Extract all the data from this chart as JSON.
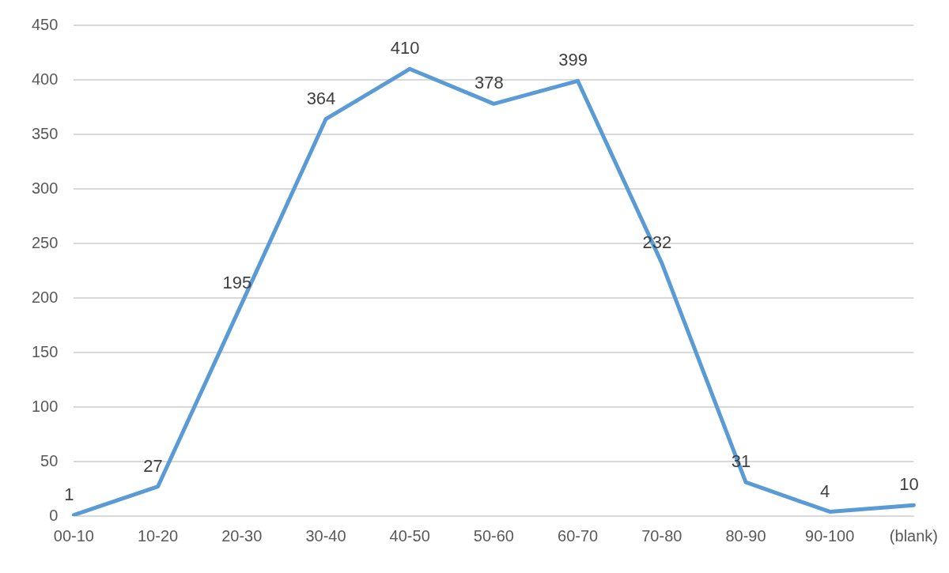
{
  "chart_data": {
    "type": "line",
    "categories": [
      "00-10",
      "10-20",
      "20-30",
      "30-40",
      "40-50",
      "50-60",
      "60-70",
      "70-80",
      "80-90",
      "90-100",
      "(blank)"
    ],
    "series": [
      {
        "color": "#5b9bd5",
        "values": [
          1,
          27,
          195,
          364,
          410,
          378,
          399,
          232,
          31,
          4,
          10
        ]
      }
    ],
    "ylim": [
      0,
      450
    ],
    "yticks": [
      0,
      50,
      100,
      150,
      200,
      250,
      300,
      350,
      400,
      450
    ],
    "grid": "y",
    "legend": false,
    "marker": "none",
    "line_style": "solid",
    "data_labels": true
  }
}
